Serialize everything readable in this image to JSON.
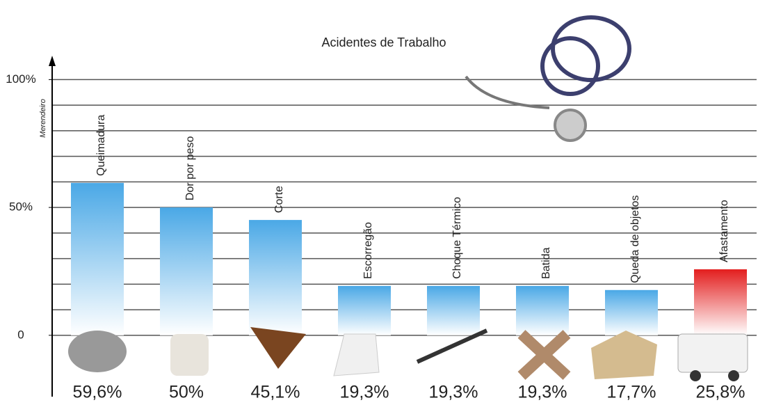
{
  "chart_data": {
    "type": "bar",
    "title": "Acidentes de Trabalho",
    "y_label": "Merendeiro",
    "categories": [
      "Queimadura",
      "Dor por peso",
      "Corte",
      "Escorregão",
      "Choque Térmico",
      "Batida",
      "Queda de objetos",
      "Afastamento"
    ],
    "values": [
      59.6,
      50,
      45.1,
      19.3,
      19.3,
      19.3,
      17.7,
      25.8
    ],
    "value_labels": [
      "59,6%",
      "50%",
      "45,1%",
      "19,3%",
      "19,3%",
      "19,3%",
      "17,7%",
      "25,8%"
    ],
    "colors": [
      "#4aa8e6",
      "#4aa8e6",
      "#4aa8e6",
      "#4aa8e6",
      "#4aa8e6",
      "#4aa8e6",
      "#4aa8e6",
      "#e31e1e"
    ],
    "ylim": [
      -24,
      108
    ],
    "yticks": [
      {
        "value": 100,
        "label": "100%"
      },
      {
        "value": 50,
        "label": "50%"
      },
      0
    ],
    "ygrid": [
      0,
      10,
      20,
      30,
      40,
      50,
      60,
      70,
      80,
      90,
      100
    ],
    "grid": true
  }
}
